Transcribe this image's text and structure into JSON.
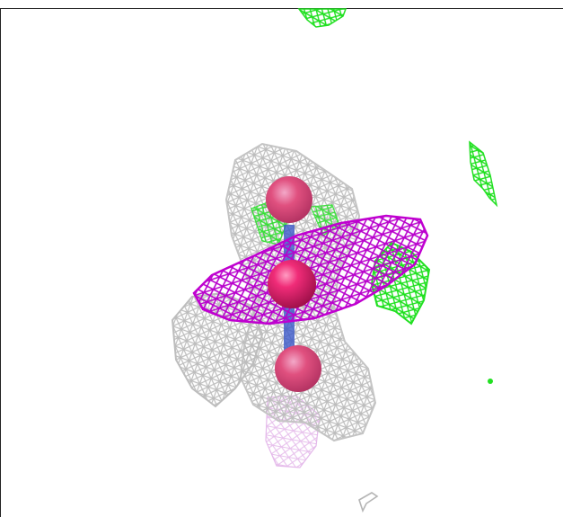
{
  "viewer": {
    "kind": "molecular-density-render",
    "background": "#ffffff",
    "colors": {
      "grey_mesh": "#c8c8c8",
      "magenta_mesh": "#c000d0",
      "green_mesh": "#22e022",
      "sphere": "#e8246e",
      "bond": "#3a58c8",
      "pale_mesh": "#e9c6ee"
    },
    "objects": [
      {
        "name": "grey-density-mesh",
        "color": "grey"
      },
      {
        "name": "magenta-density-mesh",
        "color": "magenta"
      },
      {
        "name": "green-difference-mesh",
        "color": "green"
      },
      {
        "name": "central-atom-sphere",
        "color": "pink"
      },
      {
        "name": "upper-atom-sphere",
        "color": "pink"
      },
      {
        "name": "lower-atom-sphere",
        "color": "pink"
      }
    ]
  }
}
